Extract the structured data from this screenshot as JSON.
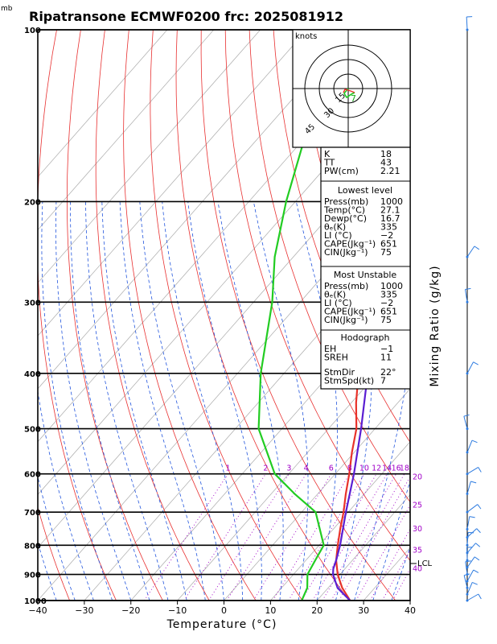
{
  "header": {
    "unit_label": "mb",
    "title": "Ripatransone ECMWF0200 frc: 2025081912"
  },
  "axis": {
    "xlabel": "Temperature (°C)",
    "ylabel_right": "Mixing Ratio (g/kg)",
    "lcl_label": "LCL"
  },
  "hodograph": {
    "unit": "knots",
    "ring_labels": [
      "15",
      "30",
      "45"
    ],
    "storm_label": "7"
  },
  "indices": {
    "top": [
      {
        "k": "K",
        "v": "18"
      },
      {
        "k": "TT",
        "v": "43"
      },
      {
        "k": "PW(cm)",
        "v": "2.21"
      }
    ],
    "lowest_title": "Lowest level",
    "lowest": [
      {
        "k": "Press(mb)",
        "v": "1000"
      },
      {
        "k": "Temp(°C)",
        "v": "27.1"
      },
      {
        "k": "Dewp(°C)",
        "v": "16.7"
      },
      {
        "k": "θₑ(K)",
        "v": "335"
      },
      {
        "k": "LI (°C)",
        "v": "−2"
      },
      {
        "k": "CAPE(Jkg⁻¹)",
        "v": "651"
      },
      {
        "k": "CIN(Jkg⁻¹)",
        "v": "75"
      }
    ],
    "mu_title": "Most Unstable",
    "mu": [
      {
        "k": "Press(mb)",
        "v": "1000"
      },
      {
        "k": "θₑ(K)",
        "v": "335"
      },
      {
        "k": "LI (°C)",
        "v": "−2"
      },
      {
        "k": "CAPE(Jkg⁻¹)",
        "v": "651"
      },
      {
        "k": "CIN(Jkg⁻¹)",
        "v": "75"
      }
    ],
    "hodo_title": "Hodograph",
    "hodo": [
      {
        "k": "EH",
        "v": "−1"
      },
      {
        "k": "SREH",
        "v": "11"
      }
    ],
    "storm": [
      {
        "k": "StmDir",
        "v": "22°"
      },
      {
        "k": "StmSpd(kt)",
        "v": "7"
      }
    ]
  },
  "colors": {
    "temperature": "#e8322a",
    "dewpoint": "#22cc22",
    "parcel": "#5a1ed2",
    "mixing_ratio": "#a000c8",
    "dry_adiabat": "#e83030",
    "moist_adiabat": "#2255dd",
    "isotherm": "#aaaaaa"
  },
  "chart_data": {
    "type": "line",
    "title": "Ripatransone ECMWF0200 frc: 2025081912",
    "xlabel": "Temperature (°C)",
    "ylabel": "mb",
    "xlim": [
      -40,
      40
    ],
    "x_ticks": [
      -40,
      -30,
      -20,
      -10,
      0,
      10,
      20,
      30,
      40
    ],
    "pressure_range": [
      1000,
      100
    ],
    "pressure_ticks": [
      1000,
      900,
      800,
      700,
      600,
      500,
      400,
      300,
      200,
      100
    ],
    "mixing_ratio_lines": [
      {
        "label": "1",
        "value": 1
      },
      {
        "label": "2",
        "value": 2
      },
      {
        "label": "3",
        "value": 3
      },
      {
        "label": "4",
        "value": 4
      },
      {
        "label": "6",
        "value": 6
      },
      {
        "label": "8",
        "value": 8
      },
      {
        "label": "10",
        "value": 10
      },
      {
        "label": "12",
        "value": 12
      },
      {
        "label": "14",
        "value": 14
      },
      {
        "label": "16",
        "value": 16
      },
      {
        "label": "18",
        "value": 18
      },
      {
        "label": "20",
        "value": 20
      },
      {
        "label": "25",
        "value": 25
      },
      {
        "label": "30",
        "value": 30
      },
      {
        "label": "35",
        "value": 35
      },
      {
        "label": "40",
        "value": 40
      }
    ],
    "series": [
      {
        "key": "temperature",
        "points": [
          [
            1000,
            27.1
          ],
          [
            950,
            23
          ],
          [
            900,
            19.5
          ],
          [
            850,
            16.5
          ],
          [
            800,
            14
          ],
          [
            750,
            11.5
          ],
          [
            700,
            9
          ],
          [
            650,
            6
          ],
          [
            600,
            3
          ],
          [
            550,
            -0.5
          ],
          [
            500,
            -4
          ],
          [
            450,
            -9
          ],
          [
            400,
            -14
          ],
          [
            350,
            -20
          ],
          [
            300,
            -27
          ],
          [
            250,
            -37
          ],
          [
            200,
            -38
          ],
          [
            150,
            -41
          ],
          [
            100,
            -43
          ]
        ]
      },
      {
        "key": "dewpoint",
        "points": [
          [
            1000,
            16.7
          ],
          [
            950,
            15.5
          ],
          [
            900,
            13
          ],
          [
            850,
            12
          ],
          [
            800,
            11
          ],
          [
            700,
            3
          ],
          [
            650,
            -5
          ],
          [
            600,
            -13
          ],
          [
            500,
            -25
          ],
          [
            400,
            -35
          ],
          [
            300,
            -46
          ],
          [
            250,
            -54
          ],
          [
            200,
            -62
          ],
          [
            150,
            -71
          ],
          [
            100,
            -80
          ]
        ]
      },
      {
        "key": "parcel",
        "points": [
          [
            1000,
            27.1
          ],
          [
            950,
            22
          ],
          [
            900,
            18.5
          ],
          [
            880,
            17.5
          ],
          [
            850,
            16.5
          ],
          [
            800,
            14.5
          ],
          [
            700,
            9.5
          ],
          [
            600,
            4
          ],
          [
            500,
            -3
          ],
          [
            400,
            -12
          ],
          [
            300,
            -26
          ],
          [
            250,
            -36
          ],
          [
            200,
            -48
          ],
          [
            150,
            -62
          ],
          [
            120,
            -72
          ]
        ]
      }
    ]
  }
}
